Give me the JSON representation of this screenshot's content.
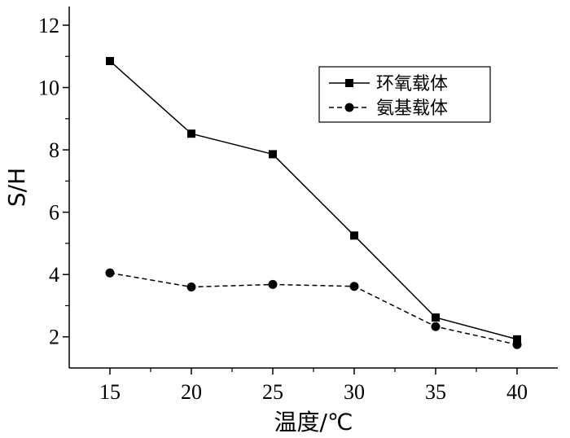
{
  "chart_data": {
    "type": "line",
    "x": [
      15,
      20,
      25,
      30,
      35,
      40
    ],
    "xticks": [
      15,
      20,
      25,
      30,
      35,
      40
    ],
    "yticks": [
      2,
      4,
      6,
      8,
      10,
      12
    ],
    "xlim": [
      12.5,
      42.5
    ],
    "ylim": [
      1,
      12.6
    ],
    "xlabel": "温度/℃",
    "ylabel": "S/H",
    "legend_position": "top-right",
    "grid": false,
    "series": [
      {
        "name": "环氧载体",
        "values": [
          10.85,
          8.52,
          7.86,
          5.25,
          2.62,
          1.92
        ],
        "marker": "square",
        "line": "solid",
        "color": "#000000"
      },
      {
        "name": "氨基载体",
        "values": [
          4.05,
          3.6,
          3.68,
          3.62,
          2.33,
          1.75
        ],
        "marker": "circle",
        "line": "dashed",
        "color": "#000000"
      }
    ]
  }
}
